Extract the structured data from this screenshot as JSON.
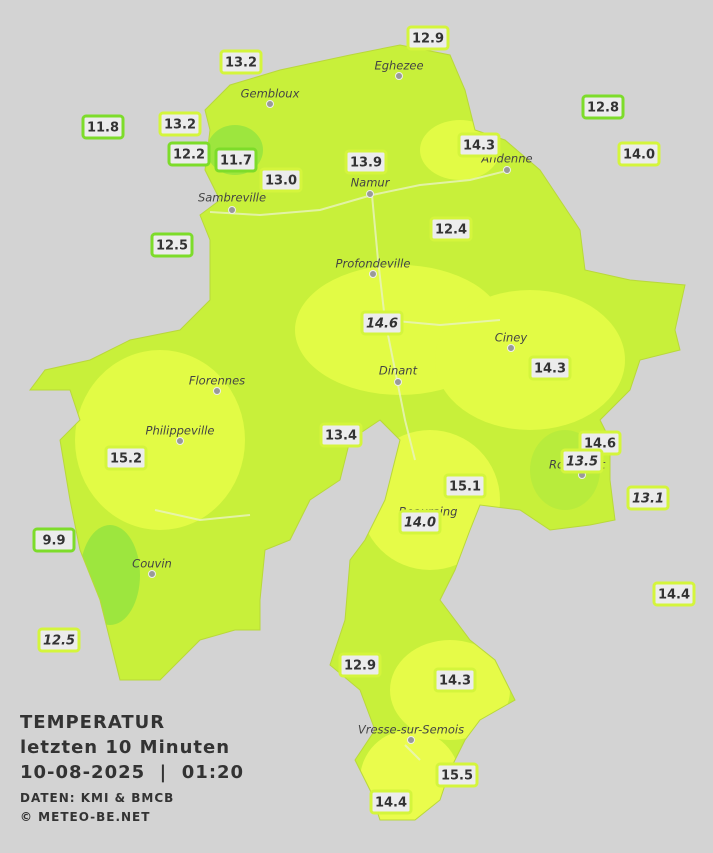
{
  "legend": {
    "title": "TEMPERATUR",
    "period": "letzten 10 Minuten",
    "datetime": "10-08-2025  |  01:20",
    "source": "DATEN: KMI & BMCB",
    "copyright": "© METEO-BE.NET"
  },
  "cities": [
    "Eghezee",
    "Gembloux",
    "Andenne",
    "Namur",
    "Sambreville",
    "Profondeville",
    "Ciney",
    "Dinant",
    "Florennes",
    "Philippeville",
    "Beauraing",
    "Rochefort",
    "Couvin",
    "Vresse-sur-Semois"
  ],
  "stations": [
    {
      "label": "12.9"
    },
    {
      "label": "13.2"
    },
    {
      "label": "12.8"
    },
    {
      "label": "11.8"
    },
    {
      "label": "13.2"
    },
    {
      "label": "14.3"
    },
    {
      "label": "14.0"
    },
    {
      "label": "12.2"
    },
    {
      "label": "11.7"
    },
    {
      "label": "13.9"
    },
    {
      "label": "13.0"
    },
    {
      "label": "12.4"
    },
    {
      "label": "12.5"
    },
    {
      "label": "14.6",
      "italic": true
    },
    {
      "label": "14.3"
    },
    {
      "label": "13.4"
    },
    {
      "label": "14.6"
    },
    {
      "label": "15.2"
    },
    {
      "label": "13.5",
      "italic": true
    },
    {
      "label": "15.1"
    },
    {
      "label": "13.1",
      "italic": true
    },
    {
      "label": "14.0",
      "italic": true
    },
    {
      "label": "9.9"
    },
    {
      "label": "14.4"
    },
    {
      "label": "12.5",
      "italic": true
    },
    {
      "label": "12.9"
    },
    {
      "label": "14.3"
    },
    {
      "label": "15.5"
    },
    {
      "label": "14.4"
    }
  ]
}
